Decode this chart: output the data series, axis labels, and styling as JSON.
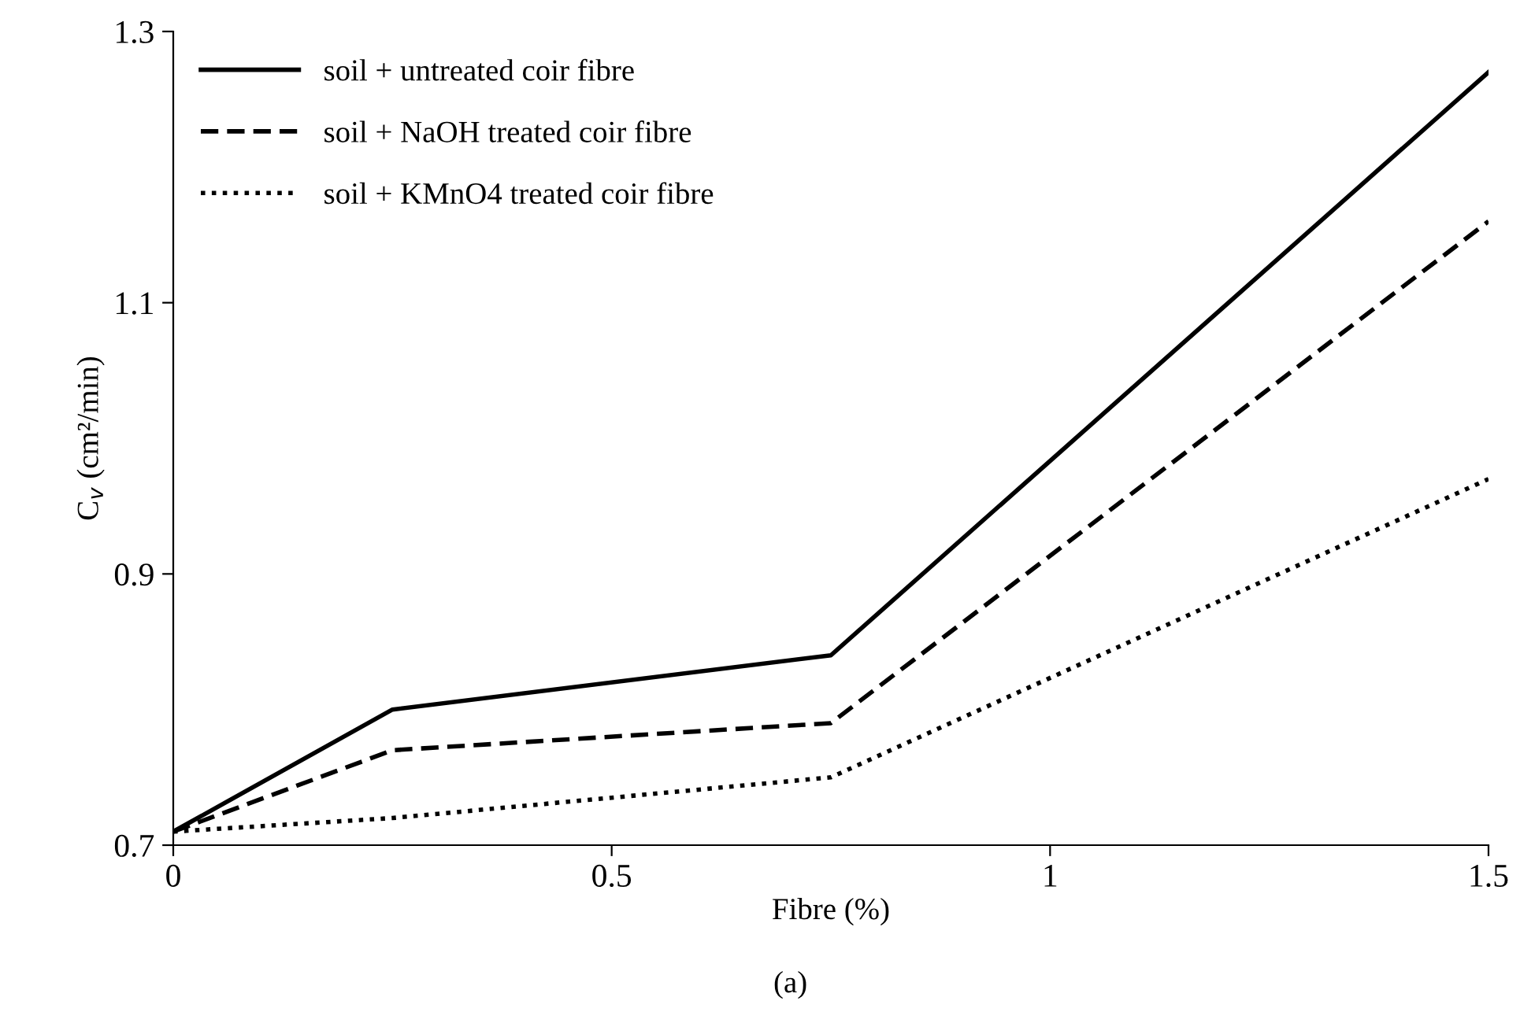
{
  "chart_data": {
    "type": "line",
    "xlabel": "Fibre (%)",
    "ylabel": "C$_{v}$ (cm²/min)",
    "x": [
      0,
      0.25,
      0.75,
      1.5
    ],
    "series": [
      {
        "name": "soil + untreated coir fibre",
        "color": "#000000",
        "line_style": "solid",
        "values": [
          0.71,
          0.8,
          0.84,
          1.27
        ]
      },
      {
        "name": "soil + NaOH treated coir fibre",
        "color": "#000000",
        "line_style": "dashed",
        "values": [
          0.71,
          0.77,
          0.79,
          1.16
        ]
      },
      {
        "name": "soil + KMnO4 treated coir fibre",
        "color": "#000000",
        "line_style": "dotted",
        "values": [
          0.71,
          0.72,
          0.75,
          0.97
        ]
      }
    ],
    "xlim": [
      0,
      1.5
    ],
    "xticks": [
      0,
      0.5,
      1,
      1.5
    ],
    "ylim": [
      0.7,
      1.3
    ],
    "yticks": [
      0.7,
      0.9,
      1.1,
      1.3
    ],
    "grid": false,
    "legend": "top left",
    "marker": "none",
    "annotations": [
      "(a)"
    ]
  }
}
